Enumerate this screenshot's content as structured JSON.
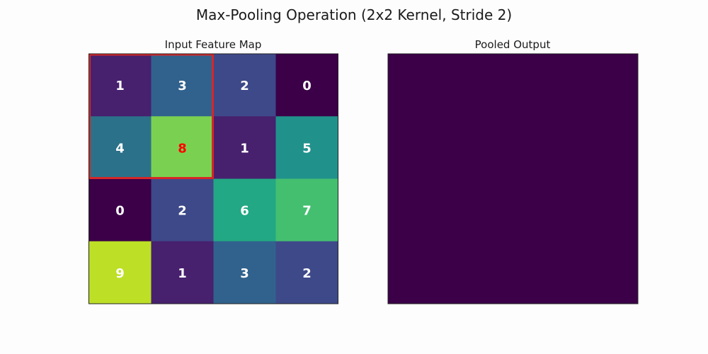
{
  "title": "Max-Pooling Operation (2x2 Kernel, Stride 2)",
  "colors": {
    "highlight": "#d62728",
    "max_text": "#ff0000",
    "value_text": "#ffffff",
    "pooled_fill": "#3b0048"
  },
  "chart_data": [
    {
      "type": "heatmap",
      "title": "Input Feature Map",
      "colormap": "viridis",
      "vmin": 0,
      "vmax": 9,
      "rows": [
        [
          1,
          3,
          2,
          0
        ],
        [
          4,
          8,
          1,
          5
        ],
        [
          0,
          2,
          6,
          7
        ],
        [
          9,
          1,
          3,
          2
        ]
      ],
      "cell_colors": [
        [
          "#47206e",
          "#31628d",
          "#3e4989",
          "#3b0048"
        ],
        [
          "#2b7189",
          "#7ad151",
          "#47206e",
          "#21918c"
        ],
        [
          "#3b0048",
          "#3e4989",
          "#22a884",
          "#44bf70"
        ],
        [
          "#bddf26",
          "#47206e",
          "#31628d",
          "#3e4989"
        ]
      ],
      "kernel_window": {
        "rows": [
          0,
          1
        ],
        "cols": [
          0,
          1
        ]
      },
      "max_cell": {
        "row": 1,
        "col": 1
      },
      "grid": false
    },
    {
      "type": "heatmap",
      "title": "Pooled Output",
      "rows": [],
      "grid": false
    }
  ]
}
